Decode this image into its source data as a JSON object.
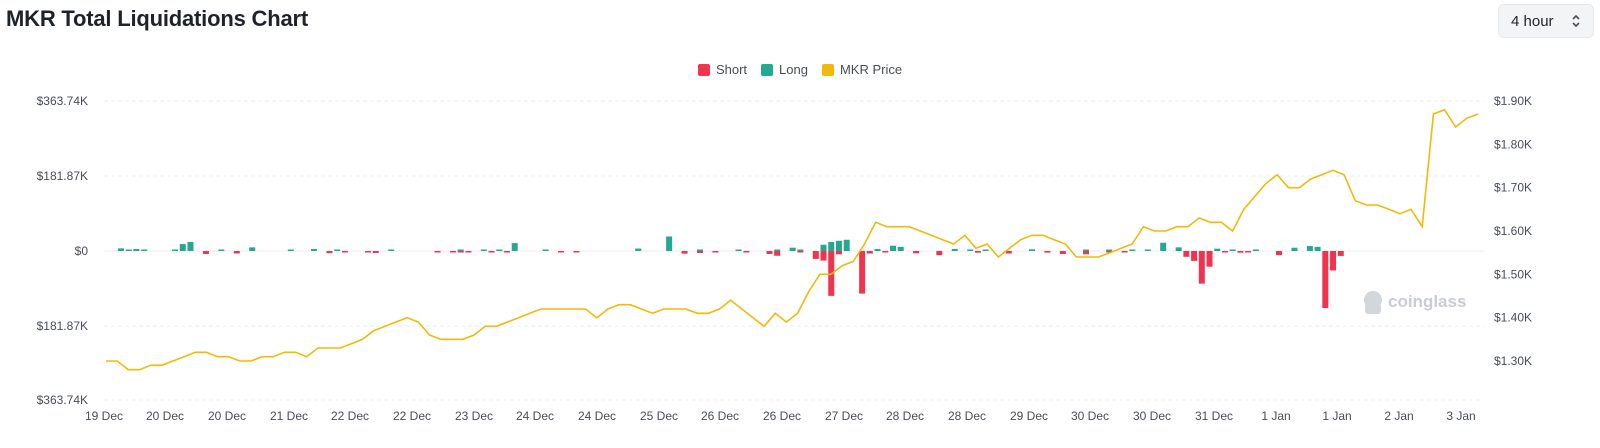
{
  "header": {
    "title": "MKR Total Liquidations Chart"
  },
  "interval": {
    "value": "4 hour"
  },
  "colors": {
    "short": "#f0334f",
    "long": "#24a88f",
    "price": "#f0b90b",
    "grid": "#eceef1"
  },
  "watermark": "coinglass",
  "chart_data": {
    "type": "bar",
    "title": "MKR Total Liquidations Chart",
    "legend": [
      "Short",
      "Long",
      "MKR Price"
    ],
    "legend_position": "top-center",
    "grid": true,
    "left_axis": {
      "ticks": [
        "$363.74K",
        "$181.87K",
        "$0",
        "$181.87K",
        "$363.74K"
      ],
      "range": [
        -363.74,
        363.74
      ],
      "unit": "K USD"
    },
    "right_axis": {
      "ticks": [
        "$1.90K",
        "$1.80K",
        "$1.70K",
        "$1.60K",
        "$1.50K",
        "$1.40K",
        "$1.30K"
      ],
      "range": [
        1.21,
        1.9
      ],
      "unit": "K USD"
    },
    "x_labels": [
      "19 Dec",
      "20 Dec",
      "20 Dec",
      "21 Dec",
      "22 Dec",
      "22 Dec",
      "23 Dec",
      "24 Dec",
      "24 Dec",
      "25 Dec",
      "26 Dec",
      "26 Dec",
      "27 Dec",
      "28 Dec",
      "28 Dec",
      "29 Dec",
      "30 Dec",
      "30 Dec",
      "31 Dec",
      "1 Jan",
      "1 Jan",
      "2 Jan",
      "3 Jan"
    ],
    "series": [
      {
        "name": "Long",
        "values": [
          16,
          5,
          12,
          0,
          2,
          0,
          0,
          0,
          42,
          55,
          0,
          0,
          0,
          6,
          0,
          0,
          0,
          22,
          0,
          0,
          0,
          0,
          0,
          12,
          0,
          0,
          0,
          0,
          0,
          0,
          0,
          0,
          0,
          0,
          0,
          8,
          0,
          0,
          0,
          0,
          0,
          0,
          0,
          0,
          0,
          0,
          0,
          8,
          0,
          4,
          0,
          48,
          0,
          0,
          0,
          0,
          0,
          0,
          0,
          0,
          0,
          0,
          0,
          0,
          0,
          0,
          0,
          15,
          0,
          0,
          0,
          88,
          0,
          0,
          0,
          0,
          0,
          0,
          0,
          0,
          0,
          0,
          0,
          0,
          0,
          0,
          0,
          0,
          20,
          0,
          0,
          38,
          55,
          62,
          68,
          0,
          0,
          0,
          0,
          12,
          0,
          32,
          25,
          0,
          0,
          0,
          0,
          0,
          0,
          12,
          0,
          0,
          0,
          8,
          0,
          0,
          0,
          0,
          0,
          10,
          0,
          0,
          0,
          0,
          0,
          0,
          0,
          0,
          0,
          0,
          0,
          0,
          0,
          0,
          6,
          0,
          0,
          0,
          50,
          0,
          22,
          0,
          0,
          0,
          0,
          14,
          0,
          0,
          0,
          0,
          6,
          0,
          0,
          0,
          0,
          0,
          20,
          0,
          30,
          25,
          0,
          0
        ]
      },
      {
        "name": "Short",
        "values": [
          0,
          0,
          0,
          0,
          0,
          0,
          0,
          0,
          0,
          0,
          0,
          18,
          0,
          0,
          0,
          15,
          0,
          0,
          0,
          0,
          0,
          0,
          0,
          0,
          0,
          0,
          0,
          0,
          0,
          0,
          0,
          0,
          0,
          0,
          0,
          0,
          0,
          0,
          0,
          0,
          0,
          0,
          0,
          0,
          0,
          0,
          0,
          0,
          0,
          0,
          0,
          0,
          0,
          0,
          0,
          0,
          0,
          0,
          0,
          0,
          0,
          0,
          0,
          0,
          0,
          0,
          0,
          0,
          0,
          0,
          0,
          0,
          0,
          0,
          0,
          0,
          0,
          0,
          0,
          0,
          0,
          0,
          0,
          0,
          0,
          0,
          0,
          0,
          0,
          0,
          0,
          0,
          0,
          0,
          0,
          0,
          0,
          0,
          0,
          0,
          0,
          0,
          0,
          0,
          0,
          0,
          0,
          0,
          0,
          0,
          0,
          0,
          0,
          0,
          0,
          0,
          0,
          0,
          0,
          0,
          0,
          0,
          0,
          0,
          0,
          0,
          0,
          0,
          0,
          0,
          0,
          0,
          0,
          0,
          0,
          0,
          0,
          0,
          0,
          0,
          0,
          0,
          0,
          0,
          0,
          0,
          0,
          0,
          0,
          0,
          0,
          0,
          0,
          0,
          0,
          0,
          0,
          0,
          0,
          0,
          0,
          0
        ]
      },
      {
        "name": "MKR Price",
        "values": []
      }
    ]
  }
}
